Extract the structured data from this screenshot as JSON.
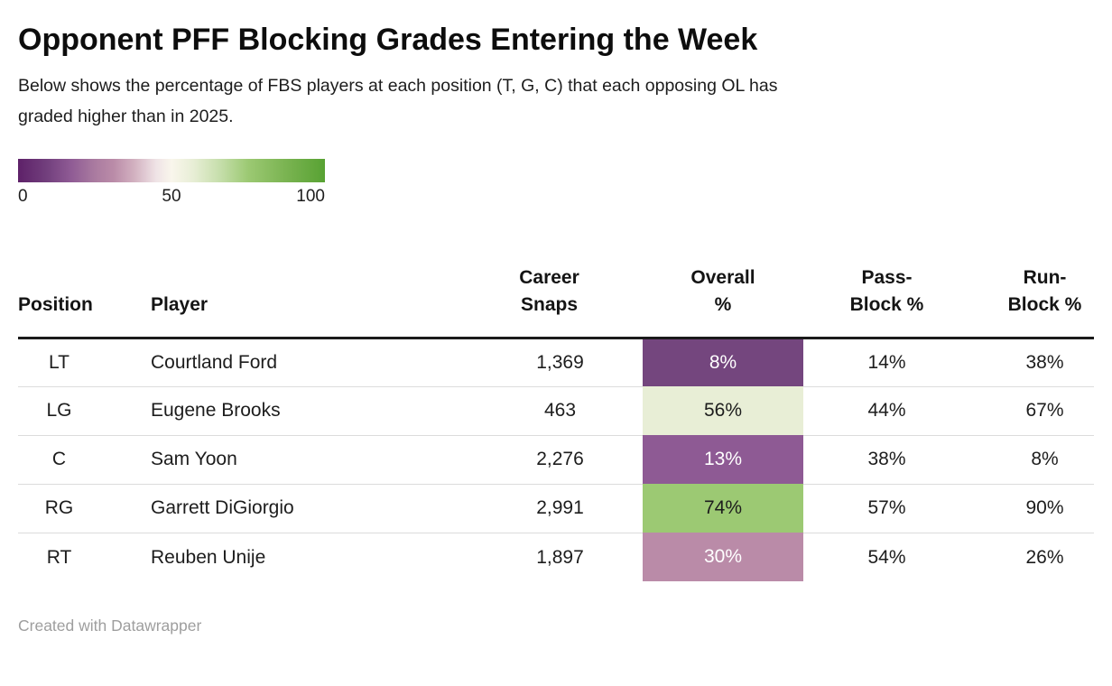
{
  "header": {
    "title": "Opponent PFF Blocking Grades Entering the Week",
    "subtitle_line1": "Below shows the percentage of FBS players at each position (T, G, C) that each opposing OL has",
    "subtitle_line2": "graded higher than in 2025."
  },
  "legend": {
    "min_label": "0",
    "mid_label": "50",
    "max_label": "100",
    "gradient_css": "linear-gradient(90deg, #5e2169 0%, #713e7c 9%, #8e5a94 17%, #aa7ba0 25%, #ba8ba8 31%, #d3b2c1 38%, #efe3e6 45%, #f9f6ec 50%, #e8eed6 57%, #c5deaa 66%, #9cc973 75%, #7bb452 87%, #58a233 100%)"
  },
  "table": {
    "headers": {
      "position": "Position",
      "player": "Player",
      "snaps_line1": "Career",
      "snaps_line2": "Snaps",
      "overall_line1": "Overall",
      "overall_line2": "%",
      "pass_line1": "Pass-",
      "pass_line2": "Block %",
      "run_line1": "Run-",
      "run_line2": "Block %"
    },
    "rows": [
      {
        "position": "LT",
        "player": "Courtland Ford",
        "snaps": "1,369",
        "overall": "8%",
        "overall_bg": "#74467e",
        "overall_text": "#ffffff",
        "pass": "14%",
        "run": "38%"
      },
      {
        "position": "LG",
        "player": "Eugene Brooks",
        "snaps": "463",
        "overall": "56%",
        "overall_bg": "#e8eed6",
        "overall_text": "#1d1d1d",
        "pass": "44%",
        "run": "67%"
      },
      {
        "position": "C",
        "player": "Sam Yoon",
        "snaps": "2,276",
        "overall": "13%",
        "overall_bg": "#8e5a94",
        "overall_text": "#ffffff",
        "pass": "38%",
        "run": "8%"
      },
      {
        "position": "RG",
        "player": "Garrett DiGiorgio",
        "snaps": "2,991",
        "overall": "74%",
        "overall_bg": "#9cc973",
        "overall_text": "#1d1d1d",
        "pass": "57%",
        "run": "90%"
      },
      {
        "position": "RT",
        "player": "Reuben Unije",
        "snaps": "1,897",
        "overall": "30%",
        "overall_bg": "#ba8ba8",
        "overall_text": "#ffffff",
        "pass": "54%",
        "run": "26%"
      }
    ]
  },
  "footer": {
    "text": "Created with Datawrapper"
  },
  "chart_data": {
    "type": "table",
    "title": "Opponent PFF Blocking Grades Entering the Week",
    "subtitle": "Below shows the percentage of FBS players at each position (T, G, C) that each opposing OL has graded higher than in 2025.",
    "columns": [
      "Position",
      "Player",
      "Career Snaps",
      "Overall %",
      "Pass-Block %",
      "Run-Block %"
    ],
    "rows": [
      [
        "LT",
        "Courtland Ford",
        1369,
        8,
        14,
        38
      ],
      [
        "LG",
        "Eugene Brooks",
        463,
        56,
        44,
        67
      ],
      [
        "C",
        "Sam Yoon",
        2276,
        13,
        38,
        8
      ],
      [
        "RG",
        "Garrett DiGiorgio",
        2991,
        74,
        57,
        90
      ],
      [
        "RT",
        "Reuben Unije",
        1897,
        30,
        54,
        26
      ]
    ],
    "heatmap_column": "Overall %",
    "color_scale": {
      "type": "diverging",
      "domain": [
        0,
        50,
        100
      ],
      "colors": [
        "#5e2169",
        "#f9f6ec",
        "#58a233"
      ],
      "legend_ticks": [
        0,
        50,
        100
      ],
      "legend_position": "top-left"
    }
  }
}
